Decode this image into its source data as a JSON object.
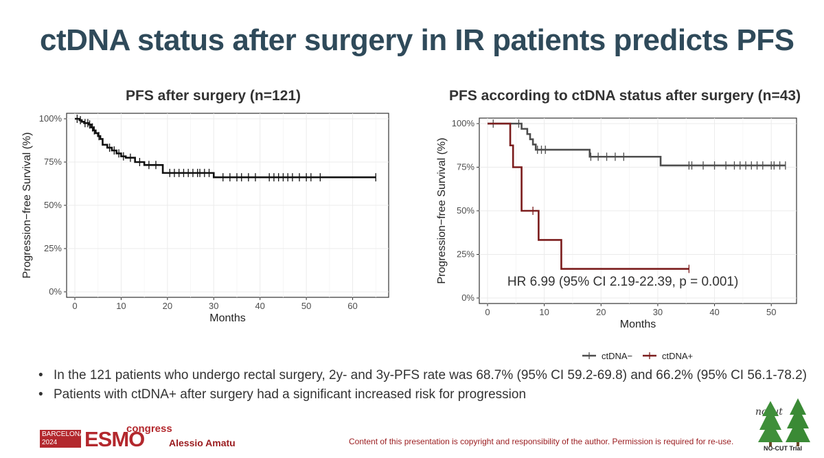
{
  "slide": {
    "title": "ctDNA status after surgery in IR patients predicts PFS",
    "bullets": [
      "In the 121 patients who undergo rectal surgery, 2y- and 3y-PFS rate was 68.7% (95% CI 59.2-69.8) and 66.2% (95% CI 56.1-78.2)",
      "Patients with ctDNA+ after surgery had a significant increased risk for progression"
    ],
    "footer": {
      "city": "BARCELONA",
      "year": "2024",
      "esmo": "ESMO",
      "congress": "congress",
      "author": "Alessio Amatu",
      "copyright": "Content of this presentation is copyright and responsibility of the author. Permission is required for re-use.",
      "trial_logo_text": "NO-CUT Trial",
      "trial_script": "nocut"
    }
  },
  "chart_data": [
    {
      "type": "line",
      "title": "PFS after surgery (n=121)",
      "xlabel": "Months",
      "ylabel": "Progression−free Survival (%)",
      "xlim": [
        0,
        66
      ],
      "ylim": [
        0,
        100
      ],
      "xticks": [
        "0",
        "10",
        "20",
        "30",
        "40",
        "50",
        "60"
      ],
      "yticks": [
        "0%",
        "25%",
        "50%",
        "75%",
        "100%"
      ],
      "series": [
        {
          "name": "All",
          "color": "#111111",
          "step_x": [
            0,
            1,
            1.5,
            2,
            3,
            3.5,
            4,
            4.5,
            5,
            5.5,
            6,
            7,
            8,
            9,
            10,
            11,
            13,
            15,
            19,
            30,
            65
          ],
          "step_y": [
            100,
            99.2,
            98.3,
            97.5,
            96.7,
            95,
            93.3,
            91.7,
            90,
            88.3,
            85,
            83.3,
            81.7,
            80,
            78.3,
            77.5,
            75,
            73.3,
            68.7,
            66.2,
            66.2
          ],
          "censor_x": [
            0.5,
            1.2,
            2.2,
            2.8,
            3.2,
            3.8,
            4.2,
            5.2,
            7.5,
            8.5,
            9.5,
            10.5,
            12,
            14,
            16,
            17.5,
            20.5,
            21.5,
            22.5,
            23.5,
            24.5,
            25.5,
            26.5,
            27,
            28,
            29,
            32,
            33.5,
            35,
            36,
            37.5,
            39,
            42,
            43,
            44,
            45,
            46,
            47,
            48.5,
            50,
            51,
            53,
            65
          ]
        }
      ]
    },
    {
      "type": "line",
      "title": "PFS according to ctDNA status after surgery (n=43)",
      "xlabel": "Months",
      "ylabel": "Progression−free Survival (%)",
      "xlim": [
        0,
        53
      ],
      "ylim": [
        0,
        100
      ],
      "xticks": [
        "0",
        "10",
        "20",
        "30",
        "40",
        "50"
      ],
      "yticks": [
        "0%",
        "25%",
        "50%",
        "75%",
        "100%"
      ],
      "annotation": "HR 6.99 (95% CI 2.19-22.39, p = 0.001)",
      "series": [
        {
          "name": "ctDNA−",
          "color": "#4d4d4d",
          "step_x": [
            0,
            6,
            7,
            7.5,
            8,
            8.5,
            18,
            30.5,
            52.5
          ],
          "step_y": [
            100,
            97,
            94,
            91,
            88,
            85,
            81,
            76,
            76
          ],
          "censor_x": [
            1,
            5.5,
            8.8,
            9.5,
            10.2,
            18.2,
            19.5,
            21,
            22.5,
            24,
            35.5,
            36,
            38,
            40,
            42,
            43.5,
            44.5,
            45.5,
            46.5,
            47.5,
            48.5,
            50,
            50.5,
            51.5,
            52.5
          ]
        },
        {
          "name": "ctDNA+",
          "color": "#7b1c1c",
          "step_x": [
            0,
            4,
            4.5,
            6,
            9,
            13,
            35.5
          ],
          "step_y": [
            100,
            87.5,
            75,
            50,
            33.3,
            16.7,
            16.7
          ],
          "censor_x": [
            8,
            35.5
          ]
        }
      ],
      "legend": [
        "ctDNA−",
        "ctDNA+"
      ]
    }
  ]
}
